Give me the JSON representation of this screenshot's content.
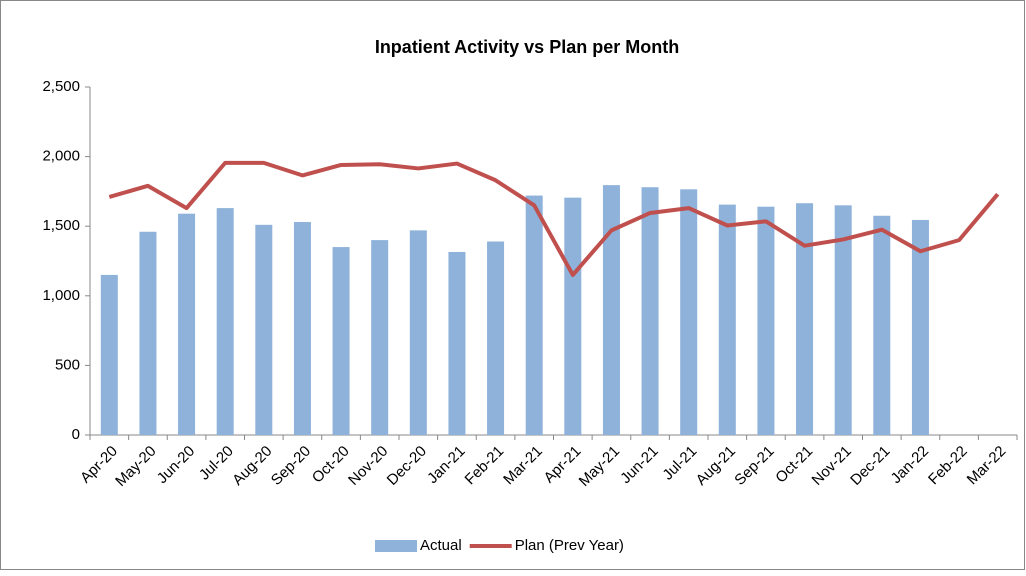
{
  "chart_data": {
    "type": "bar_line",
    "title": "Inpatient Activity vs Plan per Month",
    "categories": [
      "Apr-20",
      "May-20",
      "Jun-20",
      "Jul-20",
      "Aug-20",
      "Sep-20",
      "Oct-20",
      "Nov-20",
      "Dec-20",
      "Jan-21",
      "Feb-21",
      "Mar-21",
      "Apr-21",
      "May-21",
      "Jun-21",
      "Jul-21",
      "Aug-21",
      "Sep-21",
      "Oct-21",
      "Nov-21",
      "Dec-21",
      "Jan-22",
      "Feb-22",
      "Mar-22"
    ],
    "series": [
      {
        "name": "Actual",
        "type": "bar",
        "color": "#8eb2d9",
        "values": [
          1150,
          1460,
          1590,
          1630,
          1510,
          1530,
          1350,
          1400,
          1470,
          1315,
          1390,
          1720,
          1705,
          1795,
          1780,
          1765,
          1655,
          1640,
          1665,
          1650,
          1575,
          1545,
          null,
          null
        ]
      },
      {
        "name": "Plan (Prev Year)",
        "type": "line",
        "color": "#c0504d",
        "values": [
          1710,
          1790,
          1630,
          1955,
          1955,
          1865,
          1940,
          1945,
          1915,
          1950,
          1830,
          1650,
          1150,
          1470,
          1595,
          1630,
          1505,
          1535,
          1360,
          1405,
          1475,
          1320,
          1400,
          1730
        ]
      }
    ],
    "ylim": [
      0,
      2500
    ],
    "yticks": [
      0,
      {
        "value": 500,
        "label": "500"
      },
      {
        "value": 1000,
        "label": "1,000"
      },
      {
        "value": 1500,
        "label": "1,500"
      },
      {
        "value": 2000,
        "label": "2,000"
      },
      {
        "value": 2500,
        "label": "2,500"
      }
    ],
    "grid": false,
    "legend": "bottom"
  }
}
